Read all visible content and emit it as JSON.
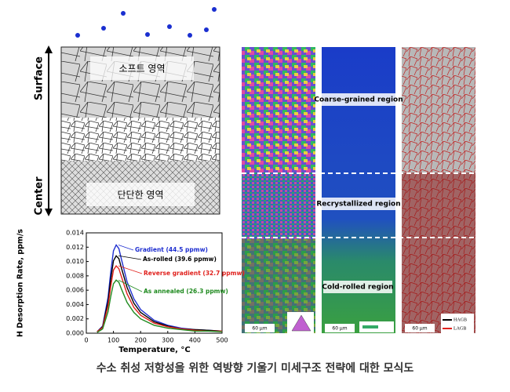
{
  "schematic": {
    "top_label": "Surface",
    "bottom_label": "Center",
    "soft_region": "소프트 영역",
    "hard_region": "단단한 영역"
  },
  "micrographs": {
    "regions": [
      "Coarse-grained region",
      "Recrystallized region",
      "Cold-rolled region"
    ],
    "scale_bars": [
      "60 μm",
      "60 μm",
      "60 μm"
    ],
    "legend": [
      "HAGB",
      "LAGB"
    ]
  },
  "chart_data": {
    "type": "line",
    "x_label": "Temperature, °C",
    "y_label": "H Desorption Rate, ppm/s",
    "x": [
      40,
      60,
      80,
      90,
      100,
      110,
      120,
      130,
      150,
      175,
      200,
      250,
      300,
      350,
      400,
      450,
      500
    ],
    "series": [
      {
        "name": "Gradient (44.5 ppmw)",
        "color": "#1f2fd0",
        "values": [
          0.0002,
          0.001,
          0.005,
          0.0085,
          0.0115,
          0.0123,
          0.0118,
          0.0102,
          0.0072,
          0.0048,
          0.0033,
          0.0018,
          0.0011,
          0.0007,
          0.0005,
          0.0004,
          0.0003
        ]
      },
      {
        "name": "As-rolled (39.6 ppmw)",
        "color": "#000000",
        "values": [
          0.0002,
          0.0009,
          0.0044,
          0.0075,
          0.0101,
          0.0108,
          0.0104,
          0.009,
          0.0064,
          0.0042,
          0.0029,
          0.0016,
          0.001,
          0.0006,
          0.0005,
          0.0004,
          0.0003
        ]
      },
      {
        "name": "Reverse gradient (32.7 ppmw)",
        "color": "#e0201c",
        "values": [
          0.0002,
          0.0008,
          0.0038,
          0.0065,
          0.0088,
          0.0094,
          0.009,
          0.0078,
          0.0055,
          0.0036,
          0.0025,
          0.0014,
          0.0009,
          0.0006,
          0.0004,
          0.0003,
          0.0003
        ]
      },
      {
        "name": "As annealed (26.3 ppmw)",
        "color": "#1f8a1f",
        "values": [
          0.0001,
          0.0006,
          0.003,
          0.0051,
          0.0069,
          0.0074,
          0.0071,
          0.0061,
          0.0043,
          0.0029,
          0.002,
          0.0011,
          0.0007,
          0.0005,
          0.0003,
          0.0003,
          0.0002
        ]
      }
    ],
    "xlim": [
      0,
      500
    ],
    "xticks": [
      0,
      100,
      200,
      300,
      400,
      500
    ],
    "ylim": [
      0,
      0.014
    ],
    "yticks": [
      {
        "value": 0,
        "label": "0.000"
      },
      {
        "value": 0.002,
        "label": "0.002"
      },
      {
        "value": 0.004,
        "label": "0.004"
      },
      {
        "value": 0.006,
        "label": "0.006"
      },
      {
        "value": 0.008,
        "label": "0.008"
      },
      {
        "value": 0.01,
        "label": "0.010"
      },
      {
        "value": 0.012,
        "label": "0.012"
      },
      {
        "value": 0.014,
        "label": "0.014"
      }
    ]
  },
  "caption": "수소 취성 저항성을 위한 역방향 기울기 미세구조 전략에 대한 모식도"
}
